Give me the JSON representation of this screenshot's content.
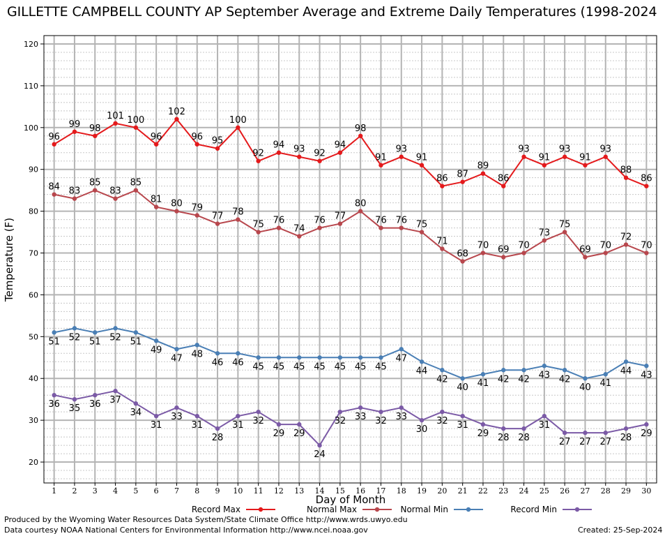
{
  "chart_data": {
    "type": "line",
    "title": "GILLETTE CAMPBELL COUNTY AP September Average and Extreme Daily Temperatures (1998-2024",
    "xlabel": "Day of Month",
    "ylabel": "Temperature (F)",
    "xlim": [
      0.5,
      30.5
    ],
    "ylim": [
      15,
      122
    ],
    "yticks": [
      20,
      30,
      40,
      50,
      60,
      70,
      80,
      90,
      100,
      110,
      120
    ],
    "grid": true,
    "legend_position": "bottom",
    "x": [
      1,
      2,
      3,
      4,
      5,
      6,
      7,
      8,
      9,
      10,
      11,
      12,
      13,
      14,
      15,
      16,
      17,
      18,
      19,
      20,
      21,
      22,
      23,
      24,
      25,
      26,
      27,
      28,
      29,
      30
    ],
    "series": [
      {
        "name": "Record Max",
        "color": "#e41a1c",
        "label_position": "above",
        "values": [
          96,
          99,
          98,
          101,
          100,
          96,
          102,
          96,
          95,
          100,
          92,
          94,
          93,
          92,
          94,
          98,
          91,
          93,
          91,
          86,
          87,
          89,
          86,
          93,
          91,
          93,
          91,
          93,
          88,
          86
        ]
      },
      {
        "name": "Normal Max",
        "color": "#b8474d",
        "label_position": "above",
        "values": [
          84,
          83,
          85,
          83,
          85,
          81,
          80,
          79,
          77,
          78,
          75,
          76,
          74,
          76,
          77,
          80,
          76,
          76,
          75,
          71,
          68,
          70,
          69,
          70,
          73,
          75,
          69,
          70,
          72,
          70
        ]
      },
      {
        "name": "Normal Min",
        "color": "#4a7fb5",
        "label_position": "below",
        "values": [
          51,
          52,
          51,
          52,
          51,
          49,
          47,
          48,
          46,
          46,
          45,
          45,
          45,
          45,
          45,
          45,
          45,
          47,
          44,
          42,
          40,
          41,
          42,
          42,
          43,
          42,
          40,
          41,
          44,
          43
        ]
      },
      {
        "name": "Record Min",
        "color": "#7b5aa6",
        "label_position": "below",
        "values": [
          36,
          35,
          36,
          37,
          34,
          31,
          33,
          31,
          28,
          31,
          32,
          29,
          29,
          24,
          32,
          33,
          32,
          33,
          30,
          32,
          31,
          29,
          28,
          28,
          31,
          27,
          27,
          27,
          28,
          29
        ]
      }
    ]
  },
  "footer": {
    "produced_by": "Produced by the Wyoming Water Resources Data System/State Climate Office http://www.wrds.uwyo.edu",
    "courtesy": "Data courtesy NOAA National Centers for Environmental Information http://www.ncei.noaa.gov",
    "created": "Created: 25-Sep-2024"
  }
}
